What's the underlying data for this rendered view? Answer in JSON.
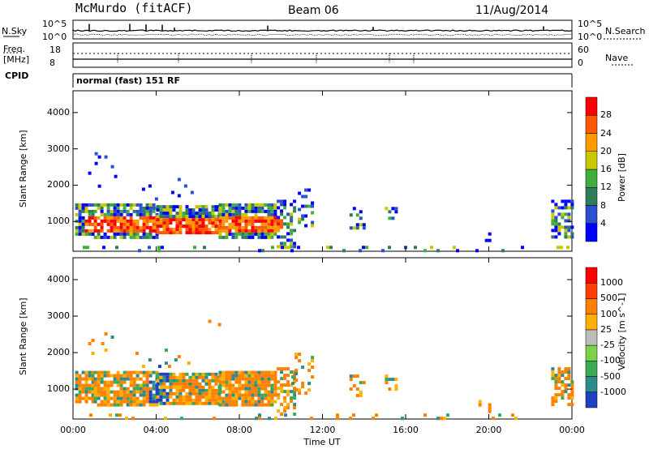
{
  "header": {
    "station": "McMurdo (fitACF)",
    "beam": "Beam 06",
    "date": "11/Aug/2014"
  },
  "top_panels": {
    "nsky_label": "N.Sky",
    "nsky_scale_top": "10^5",
    "nsky_scale_bottom": "10^0",
    "nsearch_label": "N.Search",
    "nsearch_scale_top": "10^5",
    "nsearch_scale_bottom": "10^0",
    "freq_label": "Freq.",
    "freq_unit": "[MHz]",
    "freq_top": "18",
    "freq_bottom": "8",
    "nave_label": "Nave",
    "nave_top": "60",
    "nave_bottom": "0",
    "cpid_label": "CPID",
    "cpid_text": "normal (fast) 151 RF"
  },
  "chart_data": [
    {
      "type": "heatmap",
      "title": "",
      "ylabel": "Slant Range [km]",
      "xlabel": "",
      "ylim": [
        180,
        4600
      ],
      "yticks": [
        "4000",
        "3000",
        "2000",
        "1000"
      ],
      "x_ticks": [
        "00:00",
        "04:00",
        "08:00",
        "12:00",
        "16:00",
        "20:00",
        "00:00"
      ],
      "colorbar": {
        "label": "Power [dB]",
        "ticks": [
          "28",
          "24",
          "20",
          "16",
          "12",
          "8",
          "4"
        ],
        "colors": [
          "#0000ff",
          "#2a4fd0",
          "#2e7d5a",
          "#3fae3f",
          "#c8c800",
          "#ff9900",
          "#ff5a00",
          "#ff0000"
        ]
      }
    },
    {
      "type": "heatmap",
      "title": "",
      "ylabel": "Slant Range [km]",
      "xlabel": "Time UT",
      "ylim": [
        180,
        4600
      ],
      "yticks": [
        "4000",
        "3000",
        "2000",
        "1000"
      ],
      "x_ticks": [
        "00:00",
        "04:00",
        "08:00",
        "12:00",
        "16:00",
        "20:00",
        "00:00"
      ],
      "colorbar": {
        "label": "Velocity [m s^-1]",
        "ticks": [
          "1000",
          "500",
          "100",
          "25",
          "-25",
          "-100",
          "-500",
          "-1000"
        ],
        "colors": [
          "#2040c0",
          "#2e8b8b",
          "#3aaa55",
          "#7ad24a",
          "#bcbcbc",
          "#ffb000",
          "#ff8000",
          "#ff4000",
          "#ff0000"
        ]
      }
    }
  ]
}
